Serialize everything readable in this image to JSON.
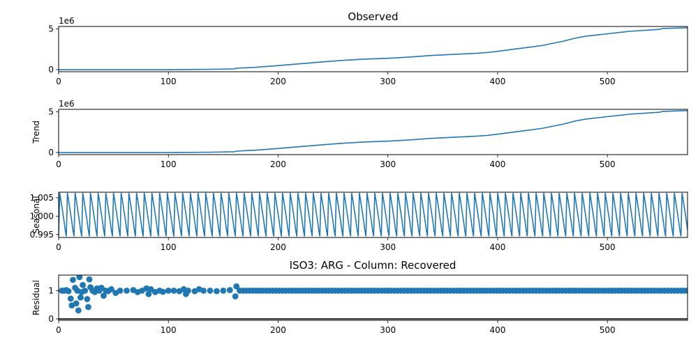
{
  "chart_data": [
    {
      "type": "line",
      "title": "Observed",
      "ylabel": "",
      "scale_label": "1e6",
      "xlim": [
        0,
        573
      ],
      "ylim": [
        -0.25,
        5.3
      ],
      "xticks": [
        0,
        100,
        200,
        300,
        400,
        500
      ],
      "yticks": [
        0,
        5
      ],
      "x": [
        0,
        100,
        140,
        160,
        162,
        180,
        200,
        220,
        240,
        260,
        280,
        300,
        320,
        340,
        360,
        380,
        390,
        400,
        420,
        440,
        460,
        470,
        480,
        500,
        520,
        548,
        550,
        573
      ],
      "values": [
        0,
        0,
        0.05,
        0.1,
        0.18,
        0.3,
        0.5,
        0.72,
        0.95,
        1.15,
        1.3,
        1.4,
        1.55,
        1.75,
        1.88,
        2.0,
        2.1,
        2.25,
        2.6,
        2.95,
        3.5,
        3.85,
        4.1,
        4.4,
        4.7,
        4.95,
        5.05,
        5.15
      ]
    },
    {
      "type": "line",
      "title": "",
      "ylabel": "Trend",
      "scale_label": "1e6",
      "xlim": [
        0,
        573
      ],
      "ylim": [
        -0.25,
        5.3
      ],
      "xticks": [
        0,
        100,
        200,
        300,
        400,
        500
      ],
      "yticks": [
        0,
        5
      ],
      "x": [
        0,
        100,
        140,
        160,
        162,
        180,
        200,
        220,
        240,
        260,
        280,
        300,
        320,
        340,
        360,
        380,
        390,
        400,
        420,
        440,
        460,
        470,
        480,
        500,
        520,
        548,
        550,
        573
      ],
      "values": [
        0,
        0,
        0.05,
        0.1,
        0.18,
        0.3,
        0.5,
        0.72,
        0.95,
        1.15,
        1.3,
        1.4,
        1.55,
        1.75,
        1.88,
        2.0,
        2.1,
        2.25,
        2.6,
        2.95,
        3.5,
        3.85,
        4.1,
        4.4,
        4.7,
        4.95,
        5.05,
        5.15
      ]
    },
    {
      "type": "line",
      "title": "",
      "ylabel": "Seasonal",
      "xlim": [
        0,
        573
      ],
      "ylim": [
        0.9942,
        1.0065
      ],
      "xticks": [
        0,
        100,
        200,
        300,
        400,
        500
      ],
      "yticks": [
        0.995,
        1.0,
        1.005
      ],
      "ytick_labels": [
        "0.995",
        "1.000",
        "1.005"
      ],
      "period": 7,
      "pattern": [
        0.9945,
        1.0063,
        1.0045,
        1.0025,
        1.0005,
        0.9985,
        0.9962
      ]
    },
    {
      "type": "scatter",
      "title": "ISO3: ARG - Column: Recovered",
      "ylabel": "Residual",
      "xlim": [
        0,
        573
      ],
      "ylim": [
        -0.05,
        1.55
      ],
      "xticks": [
        0,
        100,
        200,
        300,
        400,
        500
      ],
      "yticks": [
        0,
        1
      ],
      "baseline": 0,
      "points": [
        [
          3,
          1.0
        ],
        [
          5,
          1.0
        ],
        [
          7,
          1.02
        ],
        [
          9,
          0.98
        ],
        [
          11,
          0.72
        ],
        [
          12,
          0.48
        ],
        [
          13,
          1.38
        ],
        [
          15,
          1.1
        ],
        [
          16,
          0.55
        ],
        [
          17,
          1.0
        ],
        [
          18,
          0.3
        ],
        [
          19,
          1.48
        ],
        [
          20,
          0.76
        ],
        [
          21,
          0.95
        ],
        [
          22,
          1.2
        ],
        [
          24,
          1.0
        ],
        [
          26,
          0.7
        ],
        [
          27,
          0.42
        ],
        [
          28,
          1.4
        ],
        [
          29,
          1.12
        ],
        [
          31,
          1.0
        ],
        [
          33,
          0.95
        ],
        [
          35,
          1.08
        ],
        [
          37,
          1.0
        ],
        [
          39,
          1.1
        ],
        [
          41,
          0.82
        ],
        [
          43,
          1.0
        ],
        [
          45,
          0.98
        ],
        [
          48,
          1.05
        ],
        [
          52,
          0.92
        ],
        [
          56,
          1.0
        ],
        [
          62,
          1.0
        ],
        [
          68,
          1.02
        ],
        [
          72,
          0.95
        ],
        [
          76,
          1.0
        ],
        [
          80,
          1.08
        ],
        [
          82,
          0.88
        ],
        [
          84,
          1.05
        ],
        [
          88,
          0.95
        ],
        [
          92,
          1.0
        ],
        [
          95,
          0.96
        ],
        [
          100,
          1.0
        ],
        [
          105,
          1.0
        ],
        [
          110,
          0.98
        ],
        [
          114,
          1.05
        ],
        [
          116,
          0.88
        ],
        [
          118,
          1.0
        ],
        [
          124,
          0.98
        ],
        [
          128,
          1.05
        ],
        [
          132,
          1.0
        ],
        [
          138,
          1.0
        ],
        [
          144,
          0.98
        ],
        [
          150,
          1.0
        ],
        [
          156,
          1.02
        ],
        [
          161,
          0.8
        ],
        [
          162,
          1.15
        ],
        [
          165,
          1.0
        ]
      ],
      "dense_from": 168,
      "dense_to": 573,
      "dense_step": 3,
      "dense_value": 1.0
    }
  ]
}
